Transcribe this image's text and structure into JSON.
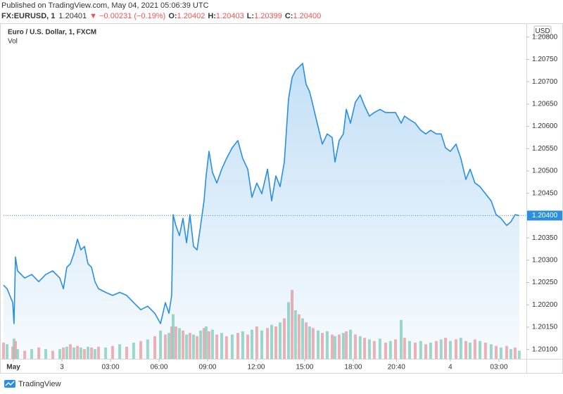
{
  "header": {
    "published": "Published on TradingView.com, May 04, 2021 05:06:39 UTC",
    "symbol": "FX:EURUSD, 1",
    "price": "1.20401",
    "change": "▼ −0.00231 (−0.19%)",
    "ohlc": [
      {
        "label": "O:",
        "value": "1.20402"
      },
      {
        "label": "H:",
        "value": "1.20403"
      },
      {
        "label": "L:",
        "value": "1.20399"
      },
      {
        "label": "C:",
        "value": "1.20400"
      }
    ]
  },
  "chart_data": {
    "type": "area",
    "title": "Euro / U.S. Dollar, 1, FXCM",
    "currency": "USD",
    "color": "#2a8fe0",
    "x": [
      -3.61,
      -3.39,
      -3.04,
      -2.96,
      -2.87,
      -2.74,
      -2.3,
      -1.87,
      -1.43,
      -1.0,
      -0.57,
      -0.13,
      0.09,
      0.3,
      0.52,
      0.74,
      0.96,
      1.17,
      1.39,
      1.61,
      1.83,
      2.04,
      2.26,
      2.7,
      3.13,
      3.57,
      4.0,
      4.43,
      4.87,
      5.3,
      5.74,
      6.09,
      6.39,
      6.61,
      6.78,
      6.87,
      7.04,
      7.26,
      7.48,
      7.7,
      7.91,
      8.13,
      8.35,
      8.57,
      8.78,
      8.91,
      9.09,
      9.3,
      9.57,
      9.87,
      10.17,
      10.52,
      10.87,
      11.17,
      11.48,
      11.74,
      12.04,
      12.35,
      12.7,
      12.96,
      13.22,
      13.48,
      13.74,
      14.0,
      14.22,
      14.43,
      14.65,
      14.87,
      15.09,
      15.3,
      15.52,
      15.83,
      16.09,
      16.39,
      16.7,
      16.87,
      17.13,
      17.39,
      17.57,
      17.83,
      18.13,
      18.43,
      18.7,
      19.0,
      19.3,
      19.65,
      20.0,
      20.3,
      20.61,
      20.96,
      21.17,
      21.48,
      21.83,
      22.17,
      22.48,
      22.78,
      23.13,
      23.43,
      23.7,
      24.0,
      24.35,
      24.65,
      24.96,
      25.22,
      25.52,
      25.83,
      26.17,
      26.52,
      26.83,
      27.13,
      27.48,
      27.74,
      28.0,
      28.26
    ],
    "values": [
      1.20244,
      1.20236,
      1.20205,
      1.20158,
      1.20307,
      1.20276,
      1.2026,
      1.20268,
      1.20252,
      1.20268,
      1.20276,
      1.2026,
      1.20236,
      1.20284,
      1.20292,
      1.20315,
      1.20347,
      1.20323,
      1.20331,
      1.20292,
      1.20284,
      1.20252,
      1.20236,
      1.20228,
      1.20221,
      1.20228,
      1.20221,
      1.20205,
      1.20189,
      1.20197,
      1.20181,
      1.20158,
      1.20205,
      1.20181,
      1.20221,
      1.20402,
      1.20378,
      1.20355,
      1.20394,
      1.20339,
      1.20402,
      1.20331,
      1.20323,
      1.20378,
      1.20433,
      1.20489,
      1.20544,
      1.20497,
      1.20473,
      1.20504,
      1.20528,
      1.20552,
      1.20568,
      1.20528,
      1.20504,
      1.20441,
      1.20473,
      1.20449,
      1.20504,
      1.20433,
      1.20489,
      1.20465,
      1.2052,
      1.20662,
      1.20709,
      1.20725,
      1.20733,
      1.20741,
      1.20694,
      1.20678,
      1.20646,
      1.20599,
      1.2056,
      1.20583,
      1.20575,
      1.2052,
      1.20568,
      1.20583,
      1.20638,
      1.20607,
      1.20654,
      1.2067,
      1.20646,
      1.20623,
      1.20631,
      1.20638,
      1.20631,
      1.20631,
      1.20631,
      1.20607,
      1.20623,
      1.20615,
      1.20607,
      1.20591,
      1.20583,
      1.20591,
      1.20583,
      1.20583,
      1.20552,
      1.20544,
      1.2056,
      1.20528,
      1.20481,
      1.20504,
      1.20473,
      1.20465,
      1.20449,
      1.20433,
      1.20402,
      1.20394,
      1.20378,
      1.20386,
      1.20402,
      1.204
    ],
    "last_label": "1.20400",
    "volume": {
      "name": "Vol",
      "colors": [
        "#f4a3a3",
        "#8fd3c0"
      ],
      "values": [
        20,
        18,
        15,
        25,
        22,
        12,
        10,
        12,
        14,
        12,
        10,
        12,
        14,
        15,
        18,
        14,
        16,
        14,
        12,
        15,
        14,
        12,
        15,
        14,
        16,
        18,
        15,
        20,
        22,
        24,
        28,
        35,
        30,
        32,
        40,
        55,
        40,
        38,
        35,
        30,
        32,
        30,
        28,
        35,
        38,
        40,
        34,
        36,
        30,
        32,
        28,
        30,
        32,
        34,
        30,
        36,
        40,
        35,
        38,
        42,
        40,
        45,
        50,
        70,
        85,
        60,
        55,
        50,
        45,
        40,
        38,
        35,
        32,
        34,
        30,
        28,
        30,
        32,
        34,
        36,
        30,
        28,
        26,
        24,
        22,
        25,
        20,
        22,
        24,
        48,
        26,
        22,
        20,
        22,
        18,
        20,
        22,
        24,
        26,
        22,
        24,
        26,
        22,
        20,
        24,
        22,
        20,
        18,
        16,
        14,
        16,
        12,
        14,
        10
      ]
    },
    "xlim": [
      -3.61,
      28.7
    ],
    "xticks": [
      {
        "value": -3,
        "label": "May"
      },
      {
        "value": 0,
        "label": "3"
      },
      {
        "value": 3,
        "label": "03:00"
      },
      {
        "value": 6,
        "label": "06:00"
      },
      {
        "value": 9,
        "label": "09:00"
      },
      {
        "value": 12,
        "label": "12:00"
      },
      {
        "value": 15,
        "label": "15:00"
      },
      {
        "value": 18,
        "label": "18:00"
      },
      {
        "value": 20.6667,
        "label": "20:40"
      },
      {
        "value": 24,
        "label": "4"
      },
      {
        "value": 27,
        "label": "03:00"
      }
    ],
    "ylim": [
      1.20079,
      1.2082
    ],
    "yticks": [
      {
        "value": 1.201,
        "label": "1.20100"
      },
      {
        "value": 1.2015,
        "label": "1.20150"
      },
      {
        "value": 1.202,
        "label": "1.20200"
      },
      {
        "value": 1.2025,
        "label": "1.20250"
      },
      {
        "value": 1.203,
        "label": "1.20300"
      },
      {
        "value": 1.2035,
        "label": "1.20350"
      },
      {
        "value": 1.2045,
        "label": "1.20450"
      },
      {
        "value": 1.205,
        "label": "1.20500"
      },
      {
        "value": 1.2055,
        "label": "1.20550"
      },
      {
        "value": 1.206,
        "label": "1.20600"
      },
      {
        "value": 1.2065,
        "label": "1.20650"
      },
      {
        "value": 1.207,
        "label": "1.20700"
      },
      {
        "value": 1.2075,
        "label": "1.20750"
      },
      {
        "value": 1.208,
        "label": "1.20800"
      }
    ],
    "grid": false
  },
  "footer": {
    "brand": "TradingView"
  }
}
